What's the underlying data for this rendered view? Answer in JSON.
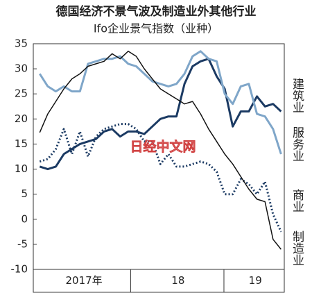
{
  "chart_data": {
    "type": "line",
    "title": "德国经济不景气波及制造业外其他行业",
    "subtitle": "Ifo企业景气指数（业种）",
    "watermark": "日经中文网",
    "x": [
      1,
      2,
      3,
      4,
      5,
      6,
      7,
      8,
      9,
      10,
      11,
      12,
      13,
      14,
      15,
      16,
      17,
      18,
      19,
      20,
      21,
      22,
      23,
      24,
      25,
      26,
      27,
      28,
      29,
      30,
      31
    ],
    "xlim": [
      0.2,
      31.4
    ],
    "year_labels": [
      {
        "value": 6.5,
        "label": "2017年"
      },
      {
        "value": 18.2,
        "label": "18"
      },
      {
        "value": 27.8,
        "label": "19"
      }
    ],
    "year_dividers": [
      12.3,
      23.9
    ],
    "ylim": [
      -10,
      35
    ],
    "yticks": [
      -10,
      -5,
      0,
      5,
      10,
      15,
      20,
      25,
      30,
      35
    ],
    "series": [
      {
        "name": "建筑业",
        "color": "#1b3a63",
        "width": 3,
        "dash": false,
        "values": [
          10.5,
          10,
          10.5,
          13,
          14,
          15,
          15.5,
          16,
          17.5,
          18,
          16.5,
          17.5,
          17.5,
          17,
          18.5,
          20,
          20.5,
          20.5,
          27,
          30.5,
          31.5,
          32,
          28.5,
          26,
          18.5,
          21.5,
          21.5,
          24.5,
          22.5,
          23,
          21.5
        ]
      },
      {
        "name": "服务业",
        "color": "#7fa6c9",
        "width": 3,
        "dash": false,
        "values": [
          29,
          26.5,
          25.5,
          26.5,
          25.5,
          25.5,
          31,
          31.5,
          32,
          32,
          32.5,
          31,
          30.5,
          29,
          27.5,
          27,
          26.5,
          27,
          29,
          32.5,
          33.5,
          32,
          31.5,
          25,
          23,
          26.5,
          27,
          21,
          20.5,
          18,
          13
        ]
      },
      {
        "name": "商业",
        "color": "#1b3a63",
        "width": 3,
        "dash": true,
        "values": [
          11.5,
          12,
          14,
          18,
          13,
          17.5,
          12.5,
          16.5,
          18,
          18.5,
          19,
          19,
          18,
          15.5,
          15.5,
          11,
          13,
          10.5,
          10.5,
          11,
          11.5,
          11,
          9.5,
          5,
          5,
          8,
          7,
          5,
          7.5,
          1,
          -2.5
        ]
      },
      {
        "name": "制造业",
        "color": "#111111",
        "width": 1.5,
        "dash": false,
        "values": [
          17.3,
          21,
          23.5,
          26,
          28,
          29,
          30.5,
          31,
          31.5,
          33,
          32,
          33.5,
          32.5,
          30,
          28,
          26,
          25,
          24,
          23,
          23.5,
          21,
          18,
          15.5,
          13,
          11,
          8.5,
          6,
          4,
          3.5,
          -4,
          -6
        ]
      }
    ]
  }
}
